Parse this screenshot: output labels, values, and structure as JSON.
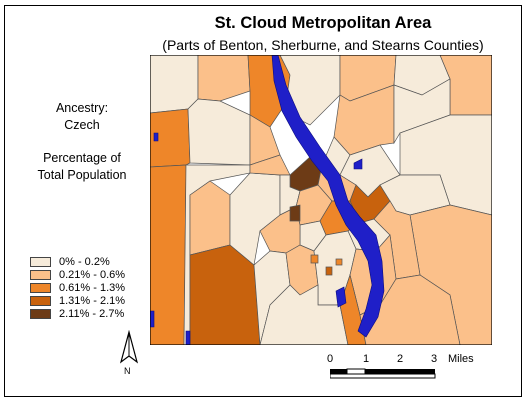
{
  "title": "St. Cloud Metropolitan Area",
  "subtitle": "(Parts of Benton, Sherburne, and Stearns Counties)",
  "ancestry_label": "Ancestry:",
  "ancestry_value": "Czech",
  "measure_line1": "Percentage of",
  "measure_line2": "Total Population",
  "legend": [
    {
      "label": "0% - 0.2%",
      "color": "#f6ebda"
    },
    {
      "label": "0.21% - 0.6%",
      "color": "#fbc08a"
    },
    {
      "label": "0.61% - 1.3%",
      "color": "#ee8629"
    },
    {
      "label": "1.31% - 2.1%",
      "color": "#c8620d"
    },
    {
      "label": "2.11% - 2.7%",
      "color": "#6d3b16"
    }
  ],
  "scale": {
    "ticks": [
      "0",
      "1",
      "2",
      "3"
    ],
    "unit": "Miles"
  },
  "north_label": "N",
  "colors": {
    "water": "#1f1fc8"
  }
}
